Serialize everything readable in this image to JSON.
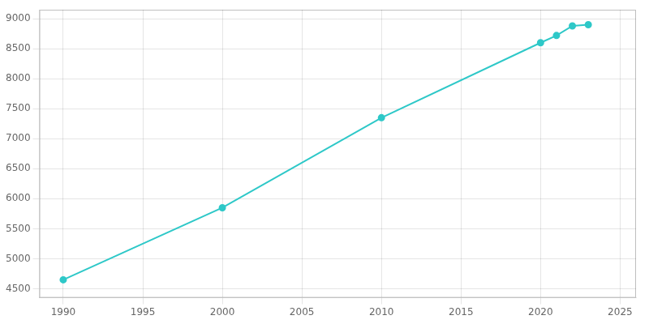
{
  "chart_data": {
    "type": "line",
    "x": [
      1990,
      2000,
      2010,
      2020,
      2021,
      2022,
      2023
    ],
    "values": [
      4650,
      5850,
      7350,
      8600,
      8720,
      8880,
      8900
    ],
    "color": "#2ec8c8",
    "marker": "circle",
    "xlim": [
      1988.5,
      2026
    ],
    "ylim": [
      4350,
      9150
    ],
    "xticks": [
      1990,
      1995,
      2000,
      2005,
      2010,
      2015,
      2020,
      2025
    ],
    "yticks": [
      4500,
      5000,
      5500,
      6000,
      6500,
      7000,
      7500,
      8000,
      8500,
      9000
    ],
    "grid": true
  }
}
